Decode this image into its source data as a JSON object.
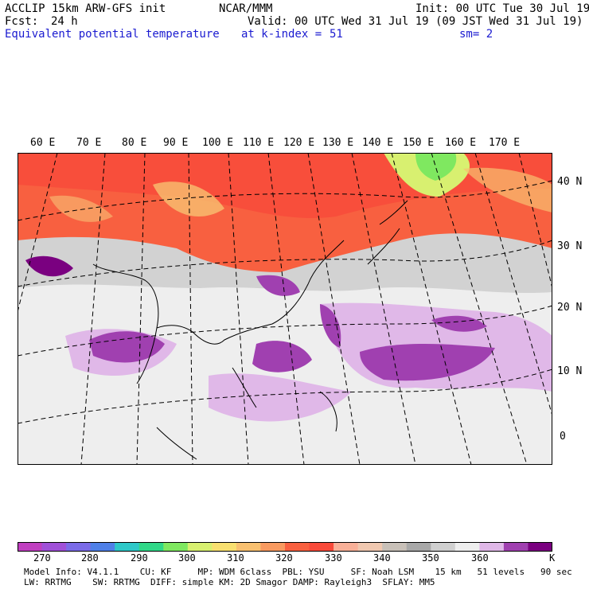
{
  "header": {
    "model": "ACCLIP 15km ARW-GFS init",
    "org": "NCAR/MMM",
    "init": "Init: 00 UTC Tue 30 Jul 19",
    "fcst_label": "Fcst:",
    "fcst_value": "24 h",
    "valid": "Valid: 00 UTC Wed 31 Jul 19 (09 JST Wed 31 Jul 19)",
    "field": "Equivalent potential temperature",
    "level": "at k-index =",
    "level_value": "51",
    "smooth": "sm= 2"
  },
  "map": {
    "longitude_labels": [
      "60 E",
      "70 E",
      "80 E",
      "90 E",
      "100 E",
      "110 E",
      "120 E",
      "130 E",
      "140 E",
      "150 E",
      "160 E",
      "170 E"
    ],
    "latitude_labels": [
      "40 N",
      "30 N",
      "20 N",
      "10 N",
      "0"
    ]
  },
  "colorbar": {
    "unit": "K",
    "tick_labels": [
      "270",
      "280",
      "290",
      "300",
      "310",
      "320",
      "330",
      "340",
      "350",
      "360"
    ],
    "colors": [
      "#c03fc0",
      "#a050d8",
      "#7b6be8",
      "#4f80e8",
      "#2ec8c8",
      "#30d888",
      "#7fe860",
      "#d8f070",
      "#f8e070",
      "#f8c070",
      "#f89a60",
      "#f86040",
      "#f84a3a",
      "#f8b098",
      "#f0c8b0",
      "#c8c0b8",
      "#a8a8a8",
      "#d0d0d0",
      "#eeeeee",
      "#e0b8e8",
      "#a040b0",
      "#7a0080"
    ]
  },
  "footer": {
    "line1": "Model Info: V4.1.1    CU: KF     MP: WDM 6class  PBL: YSU     SF: Noah LSM    15 km   51 levels   90 sec",
    "line2": "LW: RRTMG    SW: RRTMG  DIFF: simple KM: 2D Smagor DAMP: Rayleigh3  SFLAY: MM5"
  }
}
